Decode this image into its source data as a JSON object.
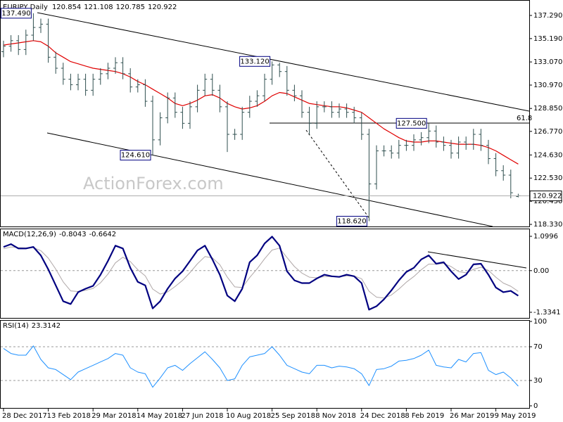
{
  "chart_data": [
    {
      "type": "ohlc",
      "title": "EURJPY,Daily",
      "categories": [
        "28 Dec 2017",
        null,
        null,
        null,
        null,
        null,
        "13 Feb 2018",
        null,
        null,
        null,
        null,
        null,
        "29 Mar 2018",
        null,
        null,
        null,
        null,
        null,
        "14 May 2018",
        null,
        null,
        null,
        null,
        null,
        "27 Jun 2018",
        null,
        null,
        null,
        null,
        null,
        "10 Aug 2018",
        null,
        null,
        null,
        null,
        null,
        "25 Sep 2018",
        null,
        null,
        null,
        null,
        null,
        "8 Nov 2018",
        null,
        null,
        null,
        null,
        null,
        "24 Dec 2018",
        null,
        null,
        null,
        null,
        null,
        "8 Feb 2019",
        null,
        null,
        null,
        null,
        null,
        "26 Mar 2019",
        null,
        null,
        null,
        null,
        null,
        "9 May 2019",
        null,
        null,
        null
      ],
      "open": [
        134.0,
        134.5,
        135.0,
        134.2,
        135.5,
        136.2,
        136.5,
        133.5,
        132.5,
        131.5,
        131.0,
        131.5,
        130.5,
        131.5,
        132.0,
        132.5,
        133.0,
        132.0,
        130.8,
        131.0,
        129.5,
        126.0,
        128.0,
        129.8,
        128.5,
        127.5,
        129.0,
        130.5,
        131.5,
        130.5,
        129.0,
        126.5,
        126.5,
        128.5,
        129.5,
        130.0,
        131.5,
        132.8,
        132.2,
        130.5,
        130.0,
        128.5,
        127.5,
        129.0,
        129.0,
        128.5,
        128.8,
        128.5,
        128.0,
        126.5,
        122.0,
        125.0,
        125.0,
        124.8,
        125.5,
        125.5,
        126.0,
        126.2,
        126.8,
        125.8,
        125.5,
        124.8,
        125.8,
        125.6,
        126.5,
        125.5,
        124.3,
        123.2,
        122.8,
        120.854
      ],
      "high": [
        135.0,
        135.5,
        135.5,
        136.0,
        137.49,
        137.0,
        137.0,
        134.0,
        133.0,
        132.0,
        132.0,
        132.0,
        132.0,
        132.5,
        133.0,
        133.5,
        133.5,
        132.5,
        131.5,
        131.5,
        130.0,
        128.5,
        130.3,
        130.3,
        129.0,
        129.5,
        131.0,
        132.0,
        132.0,
        131.0,
        129.5,
        127.0,
        129.0,
        130.0,
        130.5,
        132.0,
        133.12,
        133.0,
        132.7,
        131.0,
        130.5,
        129.0,
        129.5,
        129.5,
        129.5,
        129.3,
        129.3,
        129.0,
        128.5,
        127.0,
        125.5,
        125.5,
        125.5,
        126.0,
        126.0,
        126.5,
        126.7,
        127.5,
        127.3,
        126.3,
        126.0,
        126.3,
        126.3,
        127.0,
        127.0,
        126.0,
        124.8,
        123.7,
        123.3,
        121.108
      ],
      "low": [
        133.5,
        134.0,
        133.7,
        133.7,
        135.0,
        135.7,
        133.0,
        132.0,
        131.0,
        130.5,
        130.5,
        130.0,
        130.0,
        131.0,
        131.5,
        132.0,
        131.5,
        130.3,
        130.3,
        129.0,
        124.61,
        125.5,
        127.5,
        128.0,
        127.0,
        127.0,
        128.5,
        130.0,
        130.0,
        128.5,
        124.9,
        126.0,
        126.0,
        128.0,
        129.0,
        129.5,
        131.0,
        131.7,
        130.0,
        129.5,
        128.0,
        126.5,
        127.0,
        128.5,
        128.0,
        128.0,
        128.0,
        127.5,
        126.0,
        118.62,
        121.5,
        124.5,
        124.3,
        124.3,
        125.0,
        125.0,
        125.5,
        125.7,
        125.3,
        125.0,
        124.3,
        124.3,
        125.1,
        125.1,
        125.0,
        123.8,
        122.7,
        122.3,
        120.7,
        120.785
      ],
      "close": [
        134.5,
        135.0,
        134.2,
        135.5,
        136.2,
        136.5,
        133.5,
        132.5,
        131.5,
        131.0,
        131.5,
        130.5,
        131.5,
        132.0,
        132.5,
        133.0,
        132.0,
        130.8,
        131.0,
        129.5,
        126.0,
        128.0,
        129.8,
        128.5,
        127.5,
        129.0,
        130.5,
        131.5,
        130.5,
        129.0,
        126.5,
        126.5,
        128.5,
        129.5,
        130.0,
        131.5,
        132.8,
        132.2,
        130.5,
        130.0,
        128.5,
        127.5,
        129.0,
        129.0,
        128.5,
        128.8,
        128.5,
        128.0,
        126.5,
        122.0,
        125.0,
        125.0,
        124.8,
        125.5,
        125.5,
        126.0,
        126.2,
        126.8,
        125.8,
        125.5,
        124.8,
        125.8,
        125.6,
        126.5,
        125.5,
        124.3,
        123.2,
        122.8,
        121.2,
        120.922
      ],
      "color": "#2f4f4f",
      "moving_average": {
        "color": "#e00000",
        "values": [
          134.6,
          134.7,
          134.8,
          134.9,
          135.0,
          134.9,
          134.5,
          133.9,
          133.5,
          133.1,
          132.9,
          132.7,
          132.5,
          132.4,
          132.3,
          132.2,
          132.0,
          131.7,
          131.3,
          131.0,
          130.6,
          130.2,
          129.8,
          129.3,
          129.1,
          129.3,
          129.6,
          130.0,
          130.1,
          129.8,
          129.3,
          129.0,
          128.8,
          128.9,
          129.1,
          129.5,
          130.0,
          130.3,
          130.2,
          129.9,
          129.6,
          129.3,
          129.2,
          129.1,
          129.0,
          129.0,
          128.9,
          128.7,
          128.5,
          128.0,
          127.5,
          127.0,
          126.6,
          126.2,
          125.9,
          125.8,
          125.8,
          125.9,
          125.9,
          125.8,
          125.7,
          125.6,
          125.6,
          125.6,
          125.5,
          125.3,
          125.0,
          124.6,
          124.2,
          123.8
        ]
      },
      "ylim": [
        118.14,
        138.5
      ],
      "yticks": [
        {
          "value": 137.29,
          "label": "137.290"
        },
        {
          "value": 135.19,
          "label": "135.190"
        },
        {
          "value": 133.07,
          "label": "133.070"
        },
        {
          "value": 130.97,
          "label": "130.970"
        },
        {
          "value": 128.85,
          "label": "128.850"
        },
        {
          "value": 126.77,
          "label": "126.770"
        },
        {
          "value": 124.63,
          "label": "124.630"
        },
        {
          "value": 122.53,
          "label": "122.530"
        },
        {
          "value": 120.43,
          "label": "120.430"
        },
        {
          "value": 118.33,
          "label": "118.330"
        }
      ],
      "annotations": [
        {
          "value": 137.49,
          "label": "137.490"
        },
        {
          "value": 133.12,
          "label": "133.120"
        },
        {
          "value": 124.61,
          "label": "124.610"
        },
        {
          "value": 127.5,
          "label": "127.500"
        },
        {
          "value": 118.62,
          "label": "118.620"
        }
      ],
      "fib_label": "61.8",
      "watermark": "ActionForex.com"
    },
    {
      "type": "macd",
      "title": "MACD(12,26,9)",
      "series": [
        {
          "color": "#000080",
          "values": [
            0.76,
            0.85,
            0.71,
            0.71,
            0.76,
            0.49,
            0.04,
            -0.47,
            -0.98,
            -1.07,
            -0.69,
            -0.58,
            -0.49,
            -0.13,
            0.31,
            0.8,
            0.71,
            0.09,
            -0.36,
            -0.47,
            -1.21,
            -0.98,
            -0.58,
            -0.25,
            -0.02,
            0.31,
            0.65,
            0.8,
            0.36,
            -0.13,
            -0.8,
            -0.98,
            -0.58,
            0.27,
            0.49,
            0.87,
            1.09,
            0.8,
            -0.02,
            -0.31,
            -0.4,
            -0.4,
            -0.25,
            -0.13,
            -0.18,
            -0.2,
            -0.13,
            -0.18,
            -0.4,
            -1.25,
            -1.14,
            -0.92,
            -0.63,
            -0.31,
            -0.04,
            0.09,
            0.36,
            0.49,
            0.22,
            0.27,
            -0.02,
            -0.27,
            -0.13,
            0.2,
            0.22,
            -0.13,
            -0.54,
            -0.69,
            -0.65,
            -0.8043
          ]
        },
        {
          "color": "#b0a8a8",
          "values": [
            0.7,
            0.76,
            0.74,
            0.73,
            0.74,
            0.64,
            0.4,
            0.05,
            -0.36,
            -0.65,
            -0.67,
            -0.63,
            -0.57,
            -0.39,
            -0.11,
            0.25,
            0.43,
            0.29,
            0.03,
            -0.17,
            -0.59,
            -0.75,
            -0.68,
            -0.51,
            -0.31,
            -0.06,
            0.22,
            0.45,
            0.41,
            0.19,
            -0.21,
            -0.52,
            -0.54,
            -0.22,
            0.06,
            0.38,
            0.66,
            0.72,
            0.42,
            0.13,
            -0.08,
            -0.21,
            -0.23,
            -0.19,
            -0.19,
            -0.19,
            -0.17,
            -0.17,
            -0.26,
            -0.66,
            -0.85,
            -0.88,
            -0.78,
            -0.59,
            -0.37,
            -0.19,
            0.03,
            0.21,
            0.21,
            0.23,
            0.13,
            -0.03,
            -0.07,
            0.04,
            0.11,
            0.01,
            -0.21,
            -0.4,
            -0.5,
            -0.6642
          ]
        }
      ],
      "ylim": [
        -1.3341,
        1.0996
      ],
      "yticks": [
        1.0996,
        {
          "value": 0,
          "label": "0.00"
        },
        -1.3341
      ]
    },
    {
      "type": "rsi",
      "title": "RSI(14)",
      "color": "#1e90ff",
      "values": [
        68,
        62,
        60,
        60,
        71,
        55,
        45,
        43,
        37,
        31,
        40,
        44,
        48,
        52,
        56,
        62,
        60,
        45,
        40,
        38,
        22,
        33,
        45,
        48,
        42,
        50,
        57,
        64,
        55,
        45,
        30,
        32,
        48,
        58,
        60,
        62,
        70,
        60,
        48,
        44,
        40,
        38,
        48,
        48,
        45,
        47,
        46,
        44,
        38,
        24,
        43,
        44,
        47,
        53,
        54,
        56,
        60,
        66,
        48,
        46,
        45,
        55,
        52,
        62,
        63,
        42,
        37,
        40,
        33,
        23.3142
      ],
      "ylim": [
        0,
        100
      ],
      "yticks": [
        100,
        70,
        30,
        0
      ]
    }
  ]
}
